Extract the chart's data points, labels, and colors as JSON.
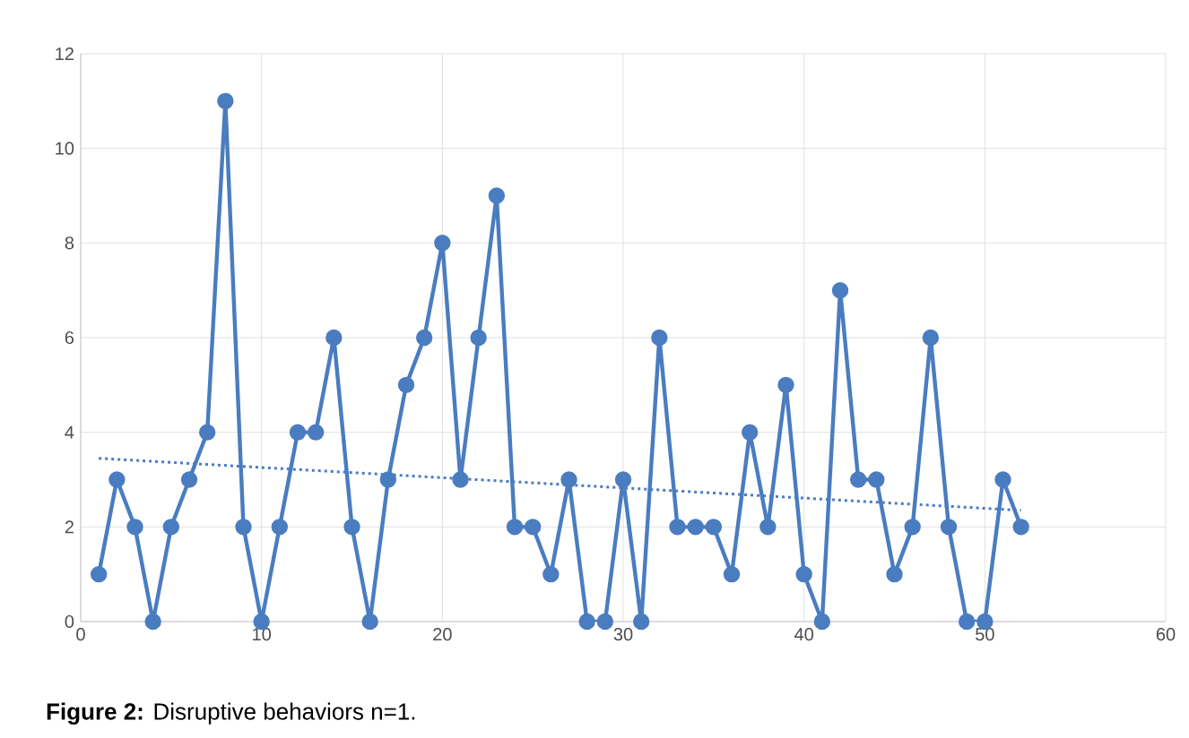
{
  "chart_data": {
    "type": "line",
    "xlim": [
      0,
      60
    ],
    "ylim": [
      0,
      12
    ],
    "xticks": [
      0,
      10,
      20,
      30,
      40,
      50,
      60
    ],
    "yticks": [
      0,
      2,
      4,
      6,
      8,
      10,
      12
    ],
    "grid": true,
    "annotations": [
      "**Figure 2:** Disruptive behaviors n=1."
    ],
    "series": [
      {
        "color": "#4a7cc0",
        "marker": "circle",
        "line_style": "solid",
        "x": [
          1,
          2,
          3,
          4,
          5,
          6,
          7,
          8,
          9,
          10,
          11,
          12,
          13,
          14,
          15,
          16,
          17,
          18,
          19,
          20,
          21,
          22,
          23,
          24,
          25,
          26,
          27,
          28,
          29,
          30,
          31,
          32,
          33,
          34,
          35,
          36,
          37,
          38,
          39,
          40,
          41,
          42,
          43,
          44,
          45,
          46,
          47,
          48,
          49,
          50,
          51,
          52
        ],
        "values": [
          1,
          3,
          2,
          0,
          2,
          3,
          4,
          11,
          2,
          0,
          2,
          4,
          4,
          6,
          2,
          0,
          3,
          5,
          6,
          8,
          3,
          6,
          9,
          2,
          2,
          1,
          3,
          0,
          0,
          3,
          0,
          6,
          2,
          2,
          2,
          1,
          4,
          2,
          5,
          1,
          0,
          7,
          3,
          3,
          1,
          2,
          6,
          2,
          0,
          0,
          3,
          2
        ]
      },
      {
        "type": "line",
        "color": "#4a7cc0",
        "marker": "none",
        "line_style": "dotted",
        "x": [
          1,
          52
        ],
        "values": [
          3.45,
          2.35
        ]
      }
    ]
  }
}
